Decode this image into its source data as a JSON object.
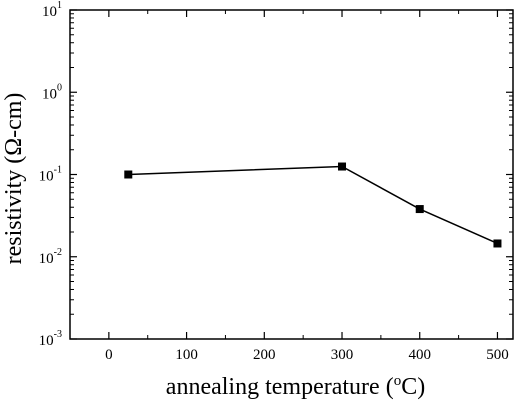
{
  "chart_data": {
    "type": "line",
    "title": "",
    "xlabel": {
      "before": "annealing temperature (",
      "sup": "o",
      "after": "C)"
    },
    "ylabel": "resistivity (Ω-cm)",
    "xlim": [
      -50,
      520
    ],
    "ylim_log10": [
      -3,
      1
    ],
    "y_scale": "log",
    "grid": false,
    "x_ticks": [
      0,
      100,
      200,
      300,
      400,
      500
    ],
    "y_ticks": [
      {
        "base": "10",
        "exp": "-3"
      },
      {
        "base": "10",
        "exp": "-2"
      },
      {
        "base": "10",
        "exp": "-1"
      },
      {
        "base": "10",
        "exp": "0"
      },
      {
        "base": "10",
        "exp": "1"
      }
    ],
    "series": [
      {
        "marker": "square",
        "color": "#000000",
        "x": [
          25,
          300,
          400,
          500
        ],
        "y": [
          0.1,
          0.125,
          0.038,
          0.0145
        ]
      }
    ]
  }
}
